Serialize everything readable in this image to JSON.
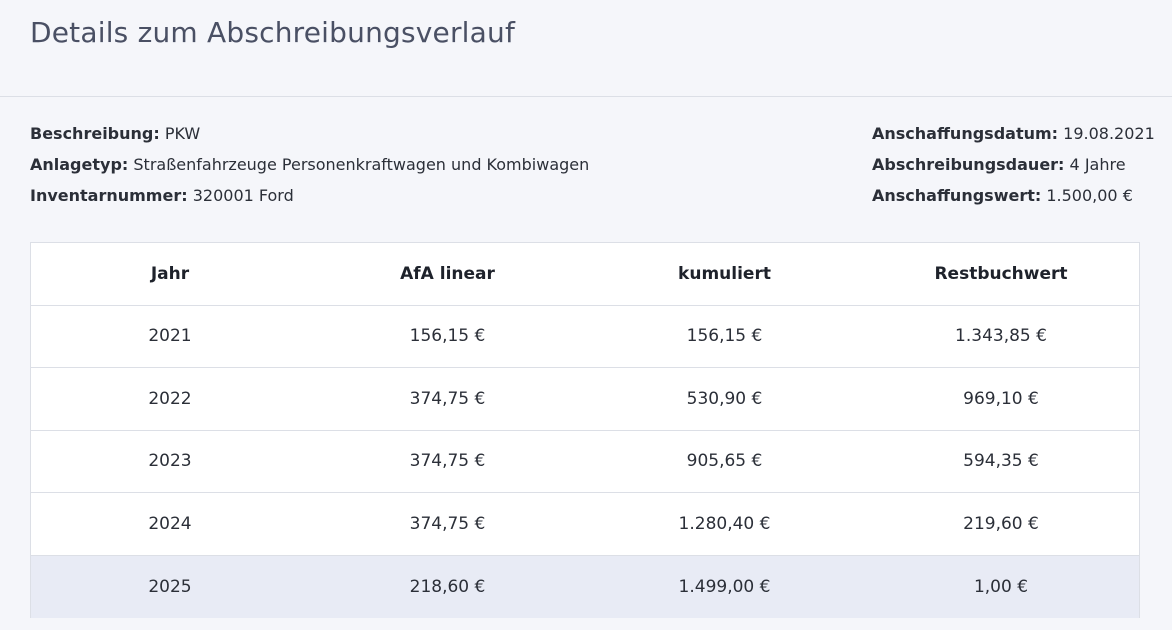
{
  "title": "Details zum Abschreibungsverlauf",
  "info_left": [
    {
      "label": "Beschreibung:",
      "value": "PKW"
    },
    {
      "label": "Anlagetyp:",
      "value": "Straßenfahrzeuge Personenkraftwagen und Kombiwagen"
    },
    {
      "label": "Inventarnummer:",
      "value": "320001 Ford"
    }
  ],
  "info_right": [
    {
      "label": "Anschaffungsdatum:",
      "value": "19.08.2021"
    },
    {
      "label": "Abschreibungsdauer:",
      "value": "4 Jahre"
    },
    {
      "label": "Anschaffungswert:",
      "value": "1.500,00 €"
    }
  ],
  "table": {
    "headers": [
      "Jahr",
      "AfA linear",
      "kumuliert",
      "Restbuchwert"
    ],
    "rows": [
      [
        "2021",
        "156,15 €",
        "156,15 €",
        "1.343,85 €"
      ],
      [
        "2022",
        "374,75 €",
        "530,90 €",
        "969,10 €"
      ],
      [
        "2023",
        "374,75 €",
        "905,65 €",
        "594,35 €"
      ],
      [
        "2024",
        "374,75 €",
        "1.280,40 €",
        "219,60 €"
      ],
      [
        "2025",
        "218,60 €",
        "1.499,00 €",
        "1,00 €"
      ]
    ]
  }
}
